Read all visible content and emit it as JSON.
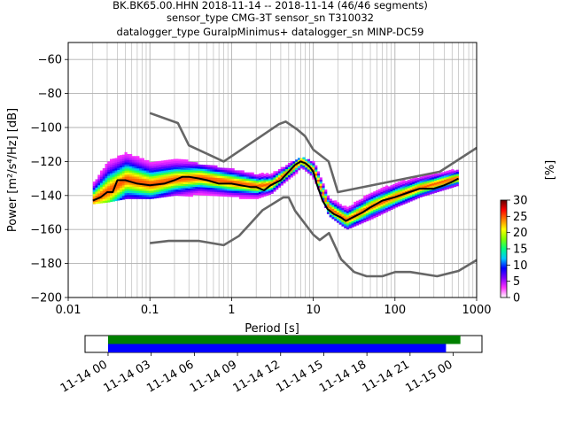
{
  "title": {
    "line1": "BK.BK65.00.HHN   2018-11-14 -- 2018-11-14  (46/46 segments)",
    "line2": "sensor_type CMG-3T sensor_sn T310032",
    "line3": "datalogger_type GuralpMinimus+ datalogger_sn MINP-DC59"
  },
  "chart_data": [
    {
      "type": "heatmap",
      "description_kind": "probabilistic power spectral density",
      "xlabel": "Period [s]",
      "ylabel": "Power [m²/s⁴/Hz] [dB]",
      "x_scale": "log",
      "xlim": [
        0.01,
        1000
      ],
      "ylim": [
        -200,
        -50
      ],
      "xticks": [
        {
          "value": 0.01,
          "label": "0.01"
        },
        {
          "value": 0.1,
          "label": "0.1"
        },
        {
          "value": 1,
          "label": "1"
        },
        {
          "value": 10,
          "label": "10"
        },
        {
          "value": 100,
          "label": "100"
        },
        {
          "value": 1000,
          "label": "1000"
        }
      ],
      "yticks": [
        {
          "value": -60,
          "label": "−60"
        },
        {
          "value": -80,
          "label": "−80"
        },
        {
          "value": -100,
          "label": "−100"
        },
        {
          "value": -120,
          "label": "−120"
        },
        {
          "value": -140,
          "label": "−140"
        },
        {
          "value": -160,
          "label": "−160"
        },
        {
          "value": -180,
          "label": "−180"
        },
        {
          "value": -200,
          "label": "−200"
        }
      ],
      "grid": true,
      "colorbar": {
        "label": "[%]",
        "min": 0,
        "max": 30,
        "ticks": [
          {
            "value": 0,
            "label": "0"
          },
          {
            "value": 5,
            "label": "5"
          },
          {
            "value": 10,
            "label": "10"
          },
          {
            "value": 15,
            "label": "15"
          },
          {
            "value": 20,
            "label": "20"
          },
          {
            "value": 25,
            "label": "25"
          },
          {
            "value": 30,
            "label": "30"
          }
        ],
        "colors": [
          "#ffffff",
          "#ff33ff",
          "#8000ff",
          "#0000ff",
          "#00c8ff",
          "#00ff80",
          "#80ff00",
          "#ffff00",
          "#ff8000",
          "#ff0000",
          "#600000"
        ]
      },
      "series": [
        {
          "role": "mode",
          "color": "#000000",
          "x": [
            0.02,
            0.025,
            0.03,
            0.035,
            0.04,
            0.05,
            0.07,
            0.1,
            0.15,
            0.2,
            0.25,
            0.3,
            0.4,
            0.5,
            0.7,
            1,
            1.3,
            1.7,
            2,
            2.5,
            3,
            4,
            5,
            6,
            7,
            8,
            9,
            10,
            11,
            13,
            15,
            18,
            22,
            25,
            30,
            40,
            50,
            70,
            100,
            150,
            200,
            300,
            400,
            500,
            600
          ],
          "y": [
            -143,
            -141,
            -138,
            -138,
            -131,
            -131,
            -133,
            -134,
            -133,
            -131,
            -129,
            -129,
            -130,
            -131,
            -133,
            -133,
            -134,
            -135,
            -135,
            -137,
            -134,
            -131,
            -126,
            -122,
            -120,
            -121,
            -123,
            -126,
            -133,
            -143,
            -148,
            -151,
            -153,
            -155,
            -153,
            -150,
            -147,
            -143,
            -141,
            -138,
            -136,
            -136,
            -134,
            -132,
            -130
          ]
        },
        {
          "role": "noise-model-high",
          "color": "#666666",
          "x": [
            0.1,
            0.22,
            0.3,
            0.8,
            3.8,
            4.6,
            6.3,
            7.9,
            10,
            15.4,
            20,
            354.8,
            1000
          ],
          "y": [
            -91.5,
            -97.4,
            -110.5,
            -120,
            -98,
            -96.5,
            -101,
            -105,
            -113,
            -120,
            -138,
            -126,
            -112
          ]
        },
        {
          "role": "noise-model-low",
          "color": "#666666",
          "x": [
            0.1,
            0.17,
            0.4,
            0.8,
            1.24,
            2.4,
            4.3,
            5,
            6,
            10,
            12,
            15.6,
            21.9,
            31.6,
            45,
            70,
            101,
            154,
            328,
            600,
            1000
          ],
          "y": [
            -168,
            -166.7,
            -166.7,
            -169.2,
            -163.7,
            -148.6,
            -141.1,
            -141.1,
            -149,
            -163,
            -166.2,
            -162.1,
            -177.5,
            -185,
            -187.5,
            -187.5,
            -185,
            -185,
            -187.5,
            -184.4,
            -178
          ]
        }
      ],
      "cloud": [
        {
          "x": 0.02,
          "ylow": -145,
          "yhigh": -125,
          "ypeak": -143
        },
        {
          "x": 0.03,
          "ylow": -144,
          "yhigh": -110,
          "ypeak": -138
        },
        {
          "x": 0.05,
          "ylow": -142,
          "yhigh": -112,
          "ypeak": -131
        },
        {
          "x": 0.1,
          "ylow": -142,
          "yhigh": -117,
          "ypeak": -134
        },
        {
          "x": 0.2,
          "ylow": -140,
          "yhigh": -118,
          "ypeak": -131
        },
        {
          "x": 0.4,
          "ylow": -141,
          "yhigh": -122,
          "ypeak": -130
        },
        {
          "x": 1,
          "ylow": -142,
          "yhigh": -125,
          "ypeak": -133
        },
        {
          "x": 2,
          "ylow": -142,
          "yhigh": -128,
          "ypeak": -135
        },
        {
          "x": 3,
          "ylow": -139,
          "yhigh": -127,
          "ypeak": -134
        },
        {
          "x": 5,
          "ylow": -130,
          "yhigh": -121,
          "ypeak": -126
        },
        {
          "x": 7,
          "ylow": -125,
          "yhigh": -118,
          "ypeak": -120
        },
        {
          "x": 10,
          "ylow": -131,
          "yhigh": -121,
          "ypeak": -126
        },
        {
          "x": 15,
          "ylow": -152,
          "yhigh": -140,
          "ypeak": -148
        },
        {
          "x": 25,
          "ylow": -160,
          "yhigh": -146,
          "ypeak": -155
        },
        {
          "x": 50,
          "ylow": -154,
          "yhigh": -138,
          "ypeak": -147
        },
        {
          "x": 100,
          "ylow": -147,
          "yhigh": -132,
          "ypeak": -141
        },
        {
          "x": 200,
          "ylow": -141,
          "yhigh": -128,
          "ypeak": -136
        },
        {
          "x": 600,
          "ylow": -134,
          "yhigh": -124,
          "ypeak": -130
        }
      ]
    },
    {
      "type": "timeline",
      "xlim": [
        "2018-11-13 22:24",
        "2018-11-15 02:00"
      ],
      "tick_labels": [
        "11-14 00",
        "11-14 03",
        "11-14 06",
        "11-14 09",
        "11-14 12",
        "11-14 15",
        "11-14 18",
        "11-14 21",
        "11-15 00"
      ],
      "tick_hours": [
        0,
        3,
        6,
        9,
        12,
        15,
        18,
        21,
        24
      ],
      "bars": [
        {
          "role": "data coverage",
          "color": "#008000",
          "start_hour": 0,
          "end_hour": 24.5
        },
        {
          "role": "psd segments",
          "color": "#0000ff",
          "start_hour": 0,
          "end_hour": 23.5
        }
      ]
    }
  ]
}
